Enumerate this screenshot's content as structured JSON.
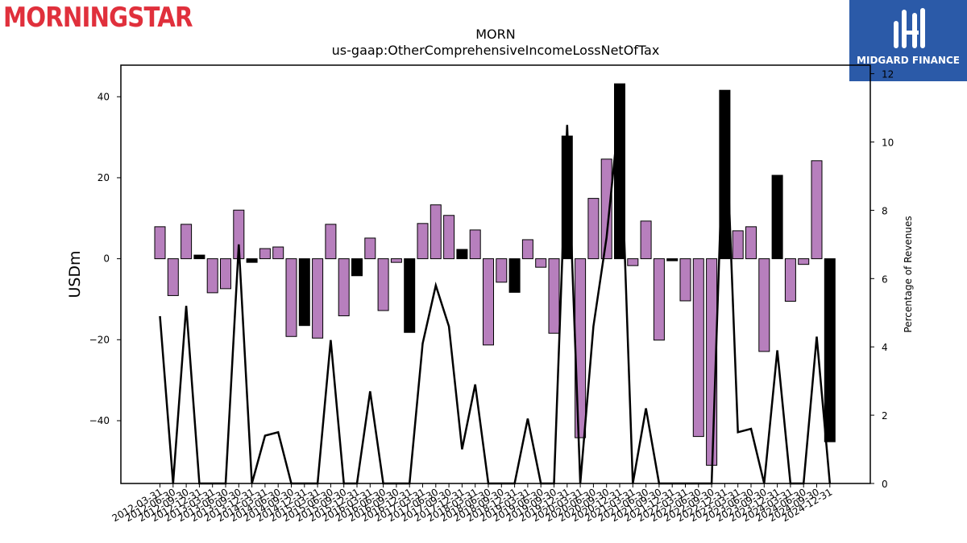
{
  "brand": {
    "left_logo_text": "MORNINGSTAR",
    "right_logo_text": "MIDGARD FINANCE"
  },
  "chart_data": {
    "type": "bar",
    "title": "MORN",
    "subtitle": "us-gaap:OtherComprehensiveIncomeLossNetOfTax",
    "ylabel": "USDm",
    "y2label": "Percentage of Revenues",
    "ylim": [
      -55.5,
      47.8
    ],
    "y2lim": [
      0,
      12.25
    ],
    "yticks": [
      -40,
      -20,
      0,
      20,
      40
    ],
    "y2ticks": [
      0,
      2,
      4,
      6,
      8,
      10,
      12
    ],
    "colors": {
      "bar": "#b77fbd",
      "highlight": "#000000",
      "line": "#000000"
    },
    "categories": [
      "2012-03-31",
      "2012-06-30",
      "2012-09-30",
      "2012-12-31",
      "2013-03-31",
      "2013-06-30",
      "2013-09-30",
      "2013-12-31",
      "2014-03-31",
      "2014-06-30",
      "2014-09-30",
      "2014-12-31",
      "2015-03-31",
      "2015-06-30",
      "2015-09-30",
      "2015-12-31",
      "2016-03-31",
      "2016-06-30",
      "2016-09-30",
      "2016-12-31",
      "2017-03-31",
      "2017-06-30",
      "2017-09-30",
      "2017-12-31",
      "2018-03-31",
      "2018-06-30",
      "2018-09-30",
      "2018-12-31",
      "2019-03-31",
      "2019-06-30",
      "2019-09-30",
      "2019-12-31",
      "2020-03-31",
      "2020-06-30",
      "2020-09-30",
      "2020-12-31",
      "2021-03-31",
      "2021-06-30",
      "2021-09-30",
      "2021-12-31",
      "2022-03-31",
      "2022-06-30",
      "2022-09-30",
      "2022-12-31",
      "2023-03-31",
      "2023-06-30",
      "2023-09-30",
      "2023-12-31",
      "2024-03-31",
      "2024-06-30",
      "2024-09-30",
      "2024-12-31"
    ],
    "xtick_labels": [
      "2012-03-31",
      "2012-06-30",
      "2012-09-30",
      "2012-12-31",
      "2013-03-31",
      "2013-06-30",
      "2013-09-30",
      "2013-12-31",
      "2014-03-31",
      "2014-06-30",
      "2014-09-30",
      "2014-12-31",
      "2015-03-31",
      "2015-06-30",
      "2015-09-30",
      "2015-12-31",
      "2016-03-31",
      "2016-06-30",
      "2016-09-30",
      "2016-12-31",
      "2017-03-31",
      "2017-06-30",
      "2017-09-30",
      "2017-12-31",
      "2018-03-31",
      "2018-06-30",
      "2018-09-30",
      "2018-12-31",
      "2019-03-31",
      "2019-06-30",
      "2019-09-30",
      "2019-12-31",
      "2020-03-31",
      "2020-06-30",
      "2020-09-30",
      "2020-12-31",
      "2021-03-31",
      "2021-06-30",
      "2021-09-30",
      "2021-12-31",
      "2022-03-31",
      "2022-06-30",
      "2022-09-30",
      "2022-12-31",
      "2023-03-31",
      "2023-06-30",
      "2023-09-30",
      "2023-12-31",
      "2024-03-31",
      "2024-06-30",
      "2024-09-30",
      "2024-12-31"
    ],
    "values": [
      7.9,
      -9.1,
      8.5,
      0.9,
      -8.4,
      -7.4,
      12.0,
      -0.9,
      2.5,
      2.9,
      -19.2,
      -16.5,
      -19.6,
      8.5,
      -14.1,
      -4.2,
      5.1,
      -12.8,
      -0.9,
      -18.2,
      8.7,
      13.3,
      10.7,
      2.3,
      7.1,
      -21.3,
      -5.8,
      -8.3,
      4.7,
      -2.1,
      -18.4,
      30.3,
      -44.2,
      14.9,
      24.6,
      43.2,
      -1.7,
      9.3,
      -20.1,
      -0.5,
      -10.4,
      -43.9,
      -51.0,
      41.6,
      6.9,
      7.9,
      -22.9,
      20.6,
      -10.5,
      -1.4,
      24.2,
      -45.2
    ],
    "highlight": [
      false,
      false,
      false,
      true,
      false,
      false,
      false,
      true,
      false,
      false,
      false,
      true,
      false,
      false,
      false,
      true,
      false,
      false,
      false,
      true,
      false,
      false,
      false,
      true,
      false,
      false,
      false,
      true,
      false,
      false,
      false,
      true,
      false,
      false,
      false,
      true,
      false,
      false,
      false,
      true,
      false,
      false,
      false,
      true,
      false,
      false,
      false,
      true,
      false,
      false,
      false,
      true
    ],
    "pct_revenue": [
      4.9,
      0,
      5.2,
      0,
      0,
      0,
      7.0,
      0,
      1.4,
      1.5,
      0,
      0,
      0,
      4.2,
      0,
      0,
      2.7,
      0,
      0,
      0,
      4.1,
      5.8,
      4.6,
      1.0,
      2.9,
      0,
      0,
      0,
      1.9,
      0,
      0,
      10.5,
      0,
      4.6,
      7.2,
      11.0,
      0,
      2.2,
      0,
      0,
      0,
      0,
      0,
      11.5,
      1.5,
      1.6,
      0,
      3.9,
      0,
      0,
      4.3,
      0
    ]
  }
}
